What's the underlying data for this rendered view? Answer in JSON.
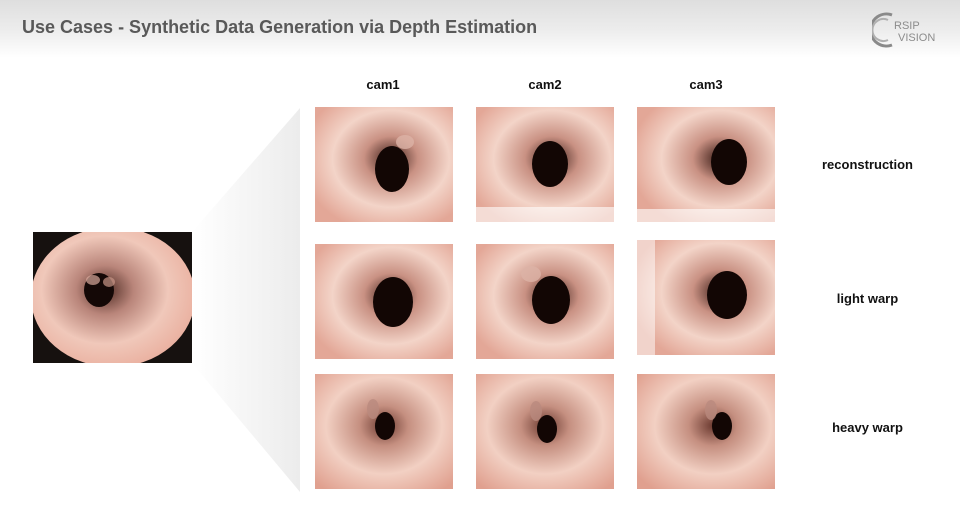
{
  "slide": {
    "title": "Use Cases - Synthetic Data Generation via Depth Estimation",
    "logo_text": [
      "RSIP",
      "VISION"
    ]
  },
  "columns": [
    "cam1",
    "cam2",
    "cam3"
  ],
  "rows": [
    "reconstruction",
    "light warp",
    "heavy warp"
  ],
  "colors": {
    "tissue_light": "#f4d6cb",
    "tissue_mid": "#e3a797",
    "lumen_dark": "#1a0b08",
    "title_gray": "#595959"
  }
}
